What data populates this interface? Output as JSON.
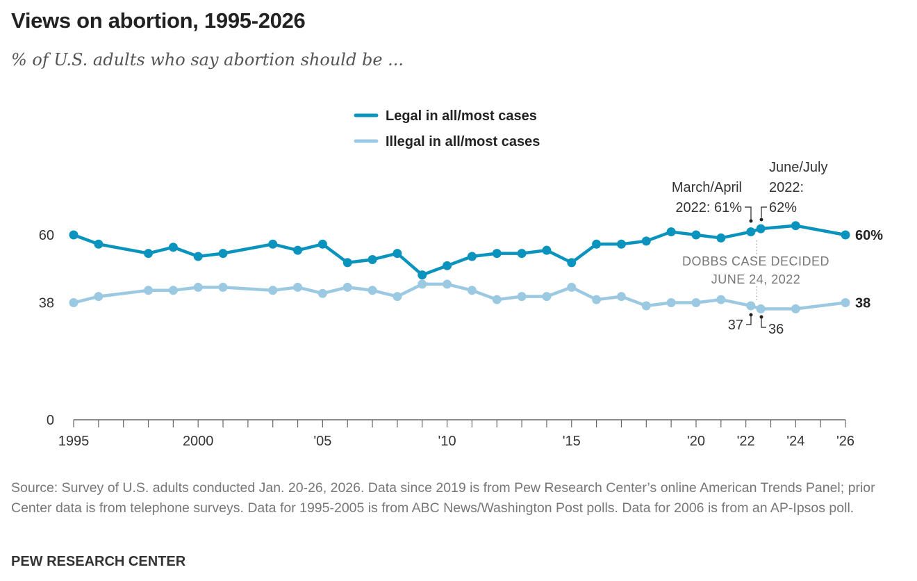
{
  "title": "Views on abortion, 1995-2026",
  "subtitle": "% of U.S. adults who say abortion should be ...",
  "source": "Source: Survey of U.S. adults conducted Jan. 20-26, 2026. Data since 2019 is from Pew Research Center’s online American Trends Panel; prior Center data is from telephone surveys. Data for 1995-2005 is from ABC News/Washington Post polls. Data for 2006 is from an AP-Ipsos poll.",
  "brand": "PEW RESEARCH CENTER",
  "chart_data": {
    "type": "line",
    "title": "Views on abortion, 1995-2026",
    "xlim": [
      1995,
      2026
    ],
    "ylim": [
      0,
      100
    ],
    "y_ticks": [
      {
        "value": 0,
        "label": "0"
      },
      {
        "value": 38,
        "label": "38"
      },
      {
        "value": 60,
        "label": "60"
      }
    ],
    "x_ticks": [
      {
        "value": 1995,
        "label": "1995"
      },
      {
        "value": 2000,
        "label": "2000"
      },
      {
        "value": 2005,
        "label": "'05"
      },
      {
        "value": 2010,
        "label": "'10"
      },
      {
        "value": 2015,
        "label": "'15"
      },
      {
        "value": 2020,
        "label": "'20"
      },
      {
        "value": 2022,
        "label": "'22"
      },
      {
        "value": 2024,
        "label": "'24"
      },
      {
        "value": 2026,
        "label": "'26"
      }
    ],
    "grid": false,
    "legend_position": "top-center",
    "series": [
      {
        "name": "Legal in all/most cases",
        "color": "#0a93bd",
        "end_label": "60%",
        "x": [
          1995,
          1996,
          1998,
          1999,
          2000,
          2001,
          2003,
          2004,
          2005,
          2006,
          2007,
          2008,
          2009,
          2010,
          2011,
          2012,
          2013,
          2014,
          2015,
          2016,
          2017,
          2018,
          2019,
          2020,
          2021,
          2022.2,
          2022.6,
          2024,
          2026
        ],
        "y": [
          60,
          57,
          54,
          56,
          53,
          54,
          57,
          55,
          57,
          51,
          52,
          54,
          47,
          50,
          53,
          54,
          54,
          55,
          51,
          57,
          57,
          58,
          61,
          60,
          59,
          61,
          62,
          63,
          60
        ]
      },
      {
        "name": "Illegal in all/most cases",
        "color": "#9cc9e2",
        "end_label": "38",
        "x": [
          1995,
          1996,
          1998,
          1999,
          2000,
          2001,
          2003,
          2004,
          2005,
          2006,
          2007,
          2008,
          2009,
          2010,
          2011,
          2012,
          2013,
          2014,
          2015,
          2016,
          2017,
          2018,
          2019,
          2020,
          2021,
          2022.2,
          2022.6,
          2024,
          2026
        ],
        "y": [
          38,
          40,
          42,
          42,
          43,
          43,
          42,
          43,
          41,
          43,
          42,
          40,
          44,
          44,
          42,
          39,
          40,
          40,
          43,
          39,
          40,
          37,
          38,
          38,
          39,
          37,
          36,
          36,
          38
        ]
      }
    ],
    "annotations": {
      "march_april": [
        "March/April",
        "2022: 61%"
      ],
      "june_july": [
        "June/July",
        "2022:",
        "62%"
      ],
      "dobbs": [
        "DOBBS CASE DECIDED",
        "JUNE 24, 2022"
      ],
      "illegal_march": "37",
      "illegal_june": "36"
    }
  }
}
